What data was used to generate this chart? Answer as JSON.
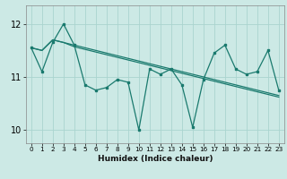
{
  "xlabel": "Humidex (Indice chaleur)",
  "bg_color": "#cce9e5",
  "grid_color": "#aad4cf",
  "line_color": "#1a7a6e",
  "xlim": [
    -0.5,
    23.5
  ],
  "ylim": [
    9.75,
    12.35
  ],
  "yticks": [
    10,
    11,
    12
  ],
  "xticks": [
    0,
    1,
    2,
    3,
    4,
    5,
    6,
    7,
    8,
    9,
    10,
    11,
    12,
    13,
    14,
    15,
    16,
    17,
    18,
    19,
    20,
    21,
    22,
    23
  ],
  "series_zigzag": [
    11.55,
    11.1,
    11.65,
    12.0,
    11.6,
    10.85,
    10.75,
    10.8,
    10.95,
    10.9,
    10.0,
    11.15,
    11.05,
    11.15,
    10.85,
    10.05,
    10.95,
    11.45,
    11.6,
    11.15,
    11.05,
    11.1,
    11.5,
    10.75
  ],
  "series_line1": [
    11.55,
    11.5,
    11.7,
    11.65,
    11.6,
    11.55,
    11.5,
    11.45,
    11.4,
    11.35,
    11.3,
    11.25,
    11.2,
    11.15,
    11.1,
    11.05,
    11.0,
    10.95,
    10.9,
    10.85,
    10.8,
    10.75,
    10.7,
    10.65
  ],
  "series_line2": [
    11.55,
    11.5,
    11.7,
    11.65,
    11.57,
    11.52,
    11.47,
    11.42,
    11.37,
    11.32,
    11.27,
    11.22,
    11.17,
    11.12,
    11.07,
    11.02,
    10.97,
    10.92,
    10.87,
    10.82,
    10.77,
    10.72,
    10.67,
    10.62
  ]
}
